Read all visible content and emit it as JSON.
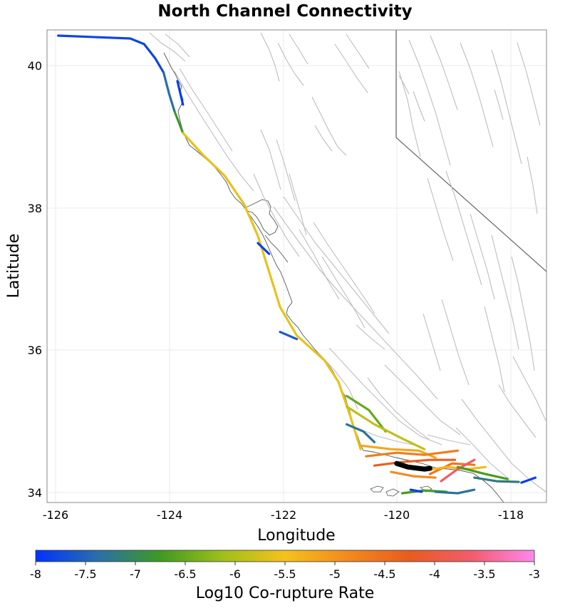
{
  "title": "North Channel Connectivity",
  "xlabel": "Longitude",
  "ylabel": "Latitude",
  "x_ticks": [
    "-126",
    "-124",
    "-122",
    "-120",
    "-118"
  ],
  "y_ticks": [
    "40",
    "38",
    "36",
    "34"
  ],
  "colorbar": {
    "title": "Log10 Co-rupture Rate",
    "ticks": [
      "-8",
      "-7.5",
      "-7",
      "-6.5",
      "-6",
      "-5.5",
      "-5",
      "-4.5",
      "-4",
      "-3.5",
      "-3"
    ],
    "colors": [
      "#0033ff",
      "#2a6fa8",
      "#3e9a22",
      "#9fbf1a",
      "#f5c21b",
      "#f28a1e",
      "#e85c1f",
      "#f25c6e",
      "#ff88ee"
    ]
  },
  "chart_data": {
    "type": "map",
    "xlim": [
      -126.3,
      -117.3
    ],
    "ylim": [
      33.85,
      40.5
    ],
    "grid": true,
    "scale_range": [
      -8,
      -3
    ],
    "faults": [
      {
        "rate": -7.8,
        "points": [
          [
            -126.1,
            40.42
          ],
          [
            -124.8,
            40.38
          ],
          [
            -124.55,
            40.3
          ],
          [
            -124.35,
            40.1
          ],
          [
            -124.2,
            39.9
          ]
        ]
      },
      {
        "rate": -7.4,
        "points": [
          [
            -124.2,
            39.9
          ],
          [
            -124.1,
            39.6
          ],
          [
            -124.0,
            39.35
          ]
        ]
      },
      {
        "rate": -6.8,
        "points": [
          [
            -124.0,
            39.35
          ],
          [
            -123.85,
            39.05
          ]
        ]
      },
      {
        "rate": -5.6,
        "points": [
          [
            -123.85,
            39.05
          ],
          [
            -123.5,
            38.75
          ],
          [
            -123.1,
            38.45
          ],
          [
            -122.75,
            38.05
          ],
          [
            -122.5,
            37.6
          ],
          [
            -122.3,
            37.1
          ],
          [
            -122.1,
            36.6
          ],
          [
            -121.8,
            36.2
          ],
          [
            -121.3,
            35.85
          ],
          [
            -121.05,
            35.55
          ],
          [
            -120.85,
            35.1
          ],
          [
            -120.65,
            34.6
          ]
        ]
      },
      {
        "rate": -7.9,
        "points": [
          [
            -123.95,
            39.78
          ],
          [
            -123.85,
            39.45
          ]
        ]
      },
      {
        "rate": -7.9,
        "points": [
          [
            -122.5,
            37.5
          ],
          [
            -122.3,
            37.35
          ]
        ]
      },
      {
        "rate": -7.6,
        "points": [
          [
            -122.1,
            36.25
          ],
          [
            -121.8,
            36.15
          ]
        ]
      },
      {
        "rate": -6.5,
        "points": [
          [
            -120.9,
            35.35
          ],
          [
            -120.5,
            35.15
          ],
          [
            -120.2,
            34.85
          ]
        ]
      },
      {
        "rate": -5.9,
        "points": [
          [
            -120.9,
            35.2
          ],
          [
            -120.4,
            34.95
          ],
          [
            -119.9,
            34.75
          ],
          [
            -119.5,
            34.6
          ]
        ]
      },
      {
        "rate": -7.3,
        "points": [
          [
            -120.9,
            34.95
          ],
          [
            -120.6,
            34.85
          ],
          [
            -120.4,
            34.7
          ]
        ]
      },
      {
        "rate": -5.2,
        "points": [
          [
            -120.65,
            34.65
          ],
          [
            -120.1,
            34.6
          ],
          [
            -119.6,
            34.58
          ],
          [
            -119.3,
            34.48
          ]
        ]
      },
      {
        "rate": -4.7,
        "points": [
          [
            -120.55,
            34.5
          ],
          [
            -120.0,
            34.55
          ],
          [
            -119.5,
            34.52
          ],
          [
            -118.9,
            34.58
          ]
        ]
      },
      {
        "rate": -4.3,
        "points": [
          [
            -120.4,
            34.37
          ],
          [
            -119.9,
            34.42
          ],
          [
            -119.4,
            34.45
          ],
          [
            -118.95,
            34.45
          ]
        ]
      },
      {
        "rate": -4.9,
        "points": [
          [
            -120.1,
            34.28
          ],
          [
            -119.7,
            34.22
          ],
          [
            -119.3,
            34.2
          ]
        ]
      },
      {
        "rate": -4.6,
        "points": [
          [
            -119.4,
            34.25
          ],
          [
            -119.0,
            34.4
          ],
          [
            -118.6,
            34.38
          ]
        ]
      },
      {
        "rate": -5.4,
        "points": [
          [
            -119.5,
            34.3
          ],
          [
            -119.1,
            34.35
          ],
          [
            -118.7,
            34.32
          ],
          [
            -118.4,
            34.35
          ]
        ]
      },
      {
        "rate": -3.7,
        "points": [
          [
            -119.2,
            34.15
          ],
          [
            -118.9,
            34.32
          ],
          [
            -118.6,
            34.45
          ]
        ]
      },
      {
        "rate": -6.7,
        "points": [
          [
            -118.9,
            34.35
          ],
          [
            -118.4,
            34.25
          ],
          [
            -118.0,
            34.18
          ]
        ]
      },
      {
        "rate": -7.2,
        "points": [
          [
            -118.6,
            34.2
          ],
          [
            -118.2,
            34.15
          ],
          [
            -117.8,
            34.14
          ]
        ]
      },
      {
        "rate": -7.9,
        "points": [
          [
            -117.75,
            34.13
          ],
          [
            -117.5,
            34.2
          ]
        ]
      },
      {
        "rate": -6.7,
        "points": [
          [
            -119.9,
            33.98
          ],
          [
            -119.5,
            34.02
          ],
          [
            -119.1,
            34.0
          ]
        ]
      },
      {
        "rate": -7.3,
        "points": [
          [
            -119.3,
            34.0
          ],
          [
            -118.9,
            33.98
          ],
          [
            -118.6,
            34.03
          ]
        ]
      },
      {
        "rate": -7.9,
        "points": [
          [
            -119.75,
            34.03
          ],
          [
            -119.55,
            34.0
          ]
        ]
      }
    ],
    "target_fault": {
      "rate": null,
      "points": [
        [
          -120.0,
          34.4
        ],
        [
          -119.8,
          34.35
        ],
        [
          -119.5,
          34.32
        ],
        [
          -119.4,
          34.33
        ]
      ]
    }
  }
}
